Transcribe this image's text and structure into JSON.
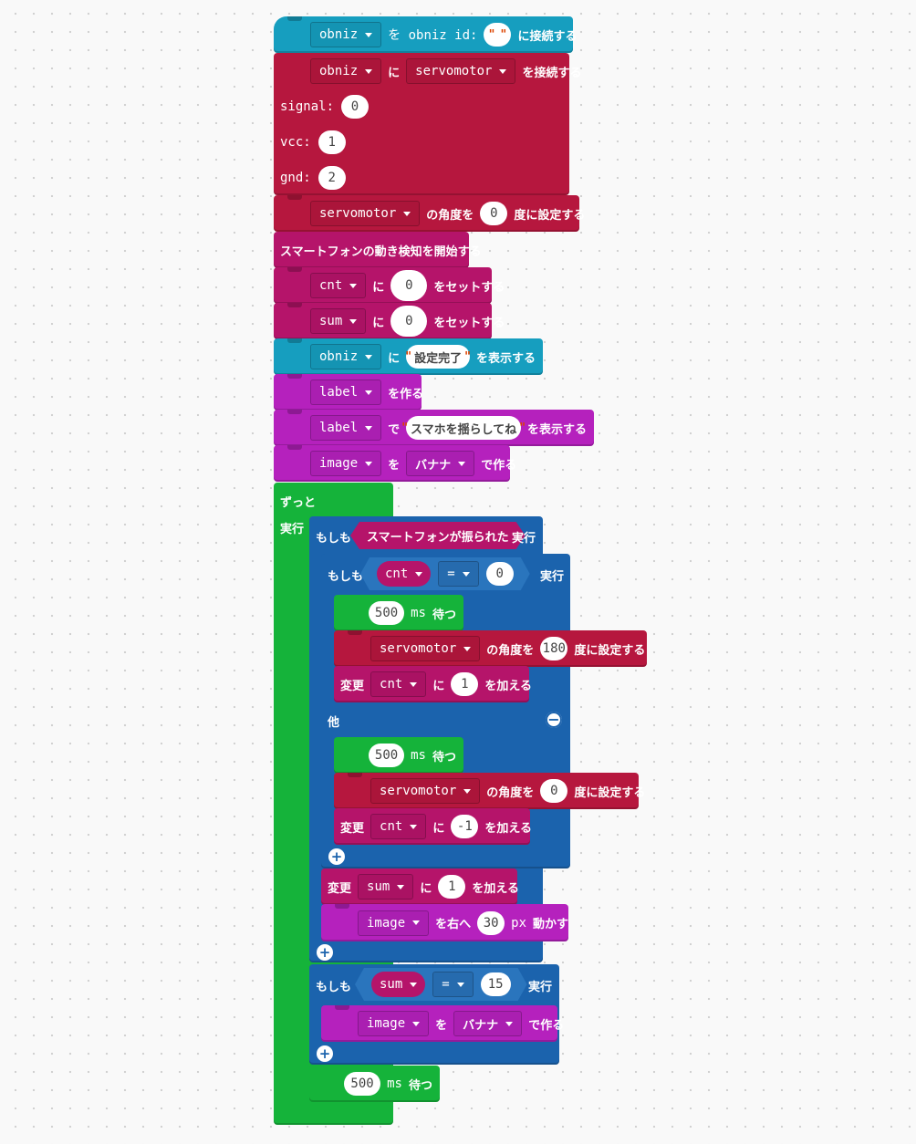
{
  "colors": {
    "obniz": "#169ebf",
    "servo": "#b6173e",
    "phone": "#b5146a",
    "ui": "#b521bd",
    "logic": "#1b63ad",
    "loop": "#15b33a"
  },
  "icons": {
    "dropdown": "caret-down-icon",
    "add": "plus-circle-icon",
    "remove": "minus-circle-icon"
  },
  "connect_obniz": {
    "var": "obniz",
    "mid": "を obniz id:",
    "id_value": "",
    "end": "に接続する"
  },
  "connect_servo": {
    "var": "obniz",
    "mid": "に",
    "device": "servomotor",
    "end": "を接続する",
    "signal_label": "signal:",
    "signal_value": "0",
    "vcc_label": "vcc:",
    "vcc_value": "1",
    "gnd_label": "gnd:",
    "gnd_value": "2"
  },
  "servo_angle_1": {
    "var": "servomotor",
    "mid": "の角度を",
    "value": "0",
    "end": "度に設定する"
  },
  "phone_motion": {
    "text": "スマートフォンの動き検知を開始する"
  },
  "set_cnt": {
    "var": "cnt",
    "mid": "に",
    "value": "0",
    "end": "をセットする"
  },
  "set_sum": {
    "var": "sum",
    "mid": "に",
    "value": "0",
    "end": "をセットする"
  },
  "show_done": {
    "var": "obniz",
    "mid": "に",
    "text": "設定完了",
    "end": "を表示する"
  },
  "make_label": {
    "var": "label",
    "end": "を作る"
  },
  "label_show": {
    "var": "label",
    "mid": "で",
    "text": "スマホを揺らしてね",
    "end": "を表示する"
  },
  "make_image": {
    "var": "image",
    "mid": "を",
    "choice": "バナナ",
    "end": "で作る"
  },
  "forever": {
    "label": "ずっと",
    "do_label": "実行"
  },
  "if_shaken": {
    "if_label": "もしも",
    "condition": "スマートフォンが振られた",
    "do_label": "実行"
  },
  "if_cnt": {
    "if_label": "もしも",
    "var": "cnt",
    "op": "=",
    "value": "0",
    "do_label": "実行"
  },
  "wait_1": {
    "value": "500",
    "unit": "ms",
    "label": "待つ"
  },
  "servo_angle_180": {
    "var": "servomotor",
    "mid": "の角度を",
    "value": "180",
    "end": "度に設定する"
  },
  "change_cnt_plus": {
    "label": "変更",
    "var": "cnt",
    "mid": "に",
    "value": "1",
    "end": "を加える"
  },
  "else_block": {
    "label": "他"
  },
  "wait_2": {
    "value": "500",
    "unit": "ms",
    "label": "待つ"
  },
  "servo_angle_0": {
    "var": "servomotor",
    "mid": "の角度を",
    "value": "0",
    "end": "度に設定する"
  },
  "change_cnt_minus": {
    "label": "変更",
    "var": "cnt",
    "mid": "に",
    "value": "-1",
    "end": "を加える"
  },
  "change_sum": {
    "label": "変更",
    "var": "sum",
    "mid": "に",
    "value": "1",
    "end": "を加える"
  },
  "move_image": {
    "var": "image",
    "mid": "を右へ",
    "value": "30",
    "unit": "px",
    "end": "動かす"
  },
  "if_sum": {
    "if_label": "もしも",
    "var": "sum",
    "op": "=",
    "value": "15",
    "do_label": "実行"
  },
  "remake_image": {
    "var": "image",
    "mid": "を",
    "choice": "バナナ",
    "end": "で作る"
  },
  "wait_3": {
    "value": "500",
    "unit": "ms",
    "label": "待つ"
  }
}
